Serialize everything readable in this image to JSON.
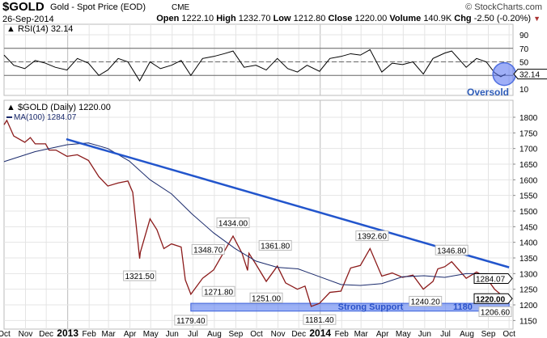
{
  "header": {
    "symbol": "$GOLD",
    "name": "Gold - Spot Price (EOD)",
    "exchange": "CME",
    "credit": "© StockCharts.com",
    "date": "26-Sep-2014",
    "open_label": "Open",
    "open": "1222.10",
    "high_label": "High",
    "high": "1232.70",
    "low_label": "Low",
    "low": "1212.80",
    "close_label": "Close",
    "close": "1220.00",
    "volume_label": "Volume",
    "volume": "140.9K",
    "chg_label": "Chg",
    "chg": "-2.50 (-0.20%)",
    "chg_icon": "triangle-down-icon"
  },
  "chart_data": [
    {
      "type": "line",
      "panel": "rsi",
      "legend": "RSI(14) 32.14",
      "current_value_label": "32.14",
      "ylim": [
        0,
        100
      ],
      "yticks": [
        10,
        50,
        70,
        90
      ],
      "reference_lines": [
        30,
        50,
        70
      ],
      "annotation": {
        "text": "Oversold",
        "date": "2014-09-24",
        "value": 32
      },
      "color": "#000000",
      "x": [
        "2012-10-01",
        "2012-10-15",
        "2012-10-31",
        "2012-11-15",
        "2012-11-30",
        "2012-12-14",
        "2012-12-31",
        "2013-01-15",
        "2013-01-31",
        "2013-02-15",
        "2013-02-28",
        "2013-03-15",
        "2013-03-29",
        "2013-04-15",
        "2013-04-30",
        "2013-05-15",
        "2013-05-31",
        "2013-06-14",
        "2013-06-28",
        "2013-07-15",
        "2013-07-31",
        "2013-08-15",
        "2013-08-28",
        "2013-09-13",
        "2013-09-30",
        "2013-10-15",
        "2013-10-31",
        "2013-11-15",
        "2013-11-29",
        "2013-12-13",
        "2013-12-31",
        "2014-01-15",
        "2014-01-31",
        "2014-02-14",
        "2014-02-28",
        "2014-03-14",
        "2014-03-31",
        "2014-04-15",
        "2014-04-30",
        "2014-05-15",
        "2014-05-30",
        "2014-06-13",
        "2014-06-30",
        "2014-07-10",
        "2014-07-31",
        "2014-08-15",
        "2014-08-29",
        "2014-09-10",
        "2014-09-19",
        "2014-09-26"
      ],
      "values": [
        60,
        45,
        40,
        52,
        48,
        42,
        38,
        55,
        48,
        30,
        38,
        55,
        50,
        22,
        50,
        40,
        45,
        52,
        30,
        55,
        58,
        62,
        66,
        42,
        45,
        38,
        55,
        40,
        35,
        45,
        36,
        55,
        58,
        62,
        60,
        68,
        35,
        48,
        46,
        50,
        32,
        55,
        63,
        66,
        42,
        55,
        50,
        34,
        28,
        32
      ]
    },
    {
      "type": "line",
      "panel": "price",
      "legend": "$GOLD (Daily) 1220.00",
      "ylim": [
        1150,
        1800
      ],
      "yticks": [
        1150,
        1200,
        1250,
        1300,
        1350,
        1400,
        1450,
        1500,
        1550,
        1600,
        1650,
        1700,
        1750,
        1800
      ],
      "xticks": [
        {
          "date": "2012-10-01",
          "label": "Oct"
        },
        {
          "date": "2012-11-01",
          "label": "Nov"
        },
        {
          "date": "2012-12-01",
          "label": "Dec"
        },
        {
          "date": "2013-01-01",
          "label": "2013",
          "bold": true
        },
        {
          "date": "2013-02-01",
          "label": "Feb"
        },
        {
          "date": "2013-03-01",
          "label": "Mar"
        },
        {
          "date": "2013-04-01",
          "label": "Apr"
        },
        {
          "date": "2013-05-01",
          "label": "May"
        },
        {
          "date": "2013-06-01",
          "label": "Jun"
        },
        {
          "date": "2013-07-01",
          "label": "Jul"
        },
        {
          "date": "2013-08-01",
          "label": "Aug"
        },
        {
          "date": "2013-09-01",
          "label": "Sep"
        },
        {
          "date": "2013-10-01",
          "label": "Oct"
        },
        {
          "date": "2013-11-01",
          "label": "Nov"
        },
        {
          "date": "2013-12-01",
          "label": "Dec"
        },
        {
          "date": "2014-01-01",
          "label": "2014",
          "bold": true
        },
        {
          "date": "2014-02-01",
          "label": "Feb"
        },
        {
          "date": "2014-03-01",
          "label": "Mar"
        },
        {
          "date": "2014-04-01",
          "label": "Apr"
        },
        {
          "date": "2014-05-01",
          "label": "May"
        },
        {
          "date": "2014-06-01",
          "label": "Jun"
        },
        {
          "date": "2014-07-01",
          "label": "Jul"
        },
        {
          "date": "2014-08-01",
          "label": "Aug"
        },
        {
          "date": "2014-09-01",
          "label": "Sep"
        },
        {
          "date": "2014-10-01",
          "label": "Oct"
        }
      ],
      "series": [
        {
          "name": "$GOLD (Daily)",
          "color": "#8b1a1a",
          "x": [
            "2012-10-01",
            "2012-10-05",
            "2012-10-15",
            "2012-10-31",
            "2012-11-08",
            "2012-11-15",
            "2012-11-30",
            "2012-12-05",
            "2012-12-15",
            "2012-12-31",
            "2013-01-15",
            "2013-01-31",
            "2013-02-15",
            "2013-02-28",
            "2013-03-15",
            "2013-03-29",
            "2013-04-05",
            "2013-04-15",
            "2013-04-16",
            "2013-04-30",
            "2013-05-10",
            "2013-05-20",
            "2013-05-31",
            "2013-06-14",
            "2013-06-20",
            "2013-06-28",
            "2013-07-15",
            "2013-07-31",
            "2013-08-15",
            "2013-08-28",
            "2013-09-10",
            "2013-09-18",
            "2013-09-20",
            "2013-09-30",
            "2013-10-15",
            "2013-10-31",
            "2013-11-12",
            "2013-11-29",
            "2013-12-10",
            "2013-12-19",
            "2013-12-31",
            "2014-01-15",
            "2014-01-31",
            "2014-02-14",
            "2014-02-28",
            "2014-03-14",
            "2014-03-31",
            "2014-04-15",
            "2014-04-30",
            "2014-05-15",
            "2014-05-30",
            "2014-06-13",
            "2014-06-20",
            "2014-06-30",
            "2014-07-10",
            "2014-07-31",
            "2014-08-15",
            "2014-08-29",
            "2014-09-10",
            "2014-09-26"
          ],
          "values": [
            1776,
            1790,
            1740,
            1720,
            1735,
            1715,
            1715,
            1695,
            1695,
            1675,
            1680,
            1662,
            1610,
            1580,
            1590,
            1596,
            1560,
            1348,
            1368,
            1475,
            1440,
            1380,
            1395,
            1385,
            1280,
            1234,
            1285,
            1312,
            1370,
            1420,
            1365,
            1310,
            1365,
            1330,
            1275,
            1324,
            1270,
            1250,
            1260,
            1195,
            1205,
            1240,
            1244,
            1318,
            1326,
            1380,
            1292,
            1302,
            1288,
            1295,
            1250,
            1275,
            1315,
            1322,
            1338,
            1285,
            1305,
            1287,
            1250,
            1220
          ]
        },
        {
          "name": "MA(100)",
          "legend": "MA(100) 1284.07",
          "current_value_label": "1284.07",
          "color": "#1a2a6c",
          "x": [
            "2012-10-01",
            "2012-11-15",
            "2012-12-31",
            "2013-01-31",
            "2013-02-28",
            "2013-03-31",
            "2013-04-30",
            "2013-05-31",
            "2013-06-30",
            "2013-07-31",
            "2013-08-31",
            "2013-09-30",
            "2013-10-31",
            "2013-11-30",
            "2013-12-31",
            "2014-01-31",
            "2014-02-28",
            "2014-03-31",
            "2014-04-30",
            "2014-05-31",
            "2014-06-30",
            "2014-07-31",
            "2014-08-31",
            "2014-09-26"
          ],
          "values": [
            1658,
            1690,
            1712,
            1718,
            1700,
            1660,
            1600,
            1555,
            1490,
            1430,
            1380,
            1340,
            1320,
            1315,
            1290,
            1265,
            1262,
            1268,
            1290,
            1293,
            1288,
            1300,
            1300,
            1284
          ]
        }
      ],
      "current_price_label": "1220.00",
      "trendline": {
        "color": "#2255cc",
        "from": {
          "date": "2012-12-30",
          "value": 1730
        },
        "to": {
          "date": "2014-10-01",
          "value": 1320
        }
      },
      "support_zone": {
        "label": "Strong Support",
        "axis_label": "1180",
        "from_date": "2013-06-28",
        "to_date": "2014-10-01",
        "low": 1180,
        "high": 1205,
        "color": "#6d8ff5"
      },
      "annotations": [
        {
          "text": "1321.50",
          "date": "2013-04-15",
          "value": 1321.5,
          "pos": "below"
        },
        {
          "text": "1179.40",
          "date": "2013-06-28",
          "value": 1179.4,
          "pos": "below"
        },
        {
          "text": "1348.70",
          "date": "2013-07-23",
          "value": 1348.7,
          "pos": "above"
        },
        {
          "text": "1271.80",
          "date": "2013-08-07",
          "value": 1271.8,
          "pos": "below"
        },
        {
          "text": "1434.00",
          "date": "2013-08-28",
          "value": 1434.0,
          "pos": "above"
        },
        {
          "text": "1251.00",
          "date": "2013-10-15",
          "value": 1251.0,
          "pos": "below"
        },
        {
          "text": "1361.80",
          "date": "2013-10-28",
          "value": 1361.8,
          "pos": "above"
        },
        {
          "text": "1181.40",
          "date": "2013-12-31",
          "value": 1181.4,
          "pos": "below"
        },
        {
          "text": "1392.60",
          "date": "2014-03-17",
          "value": 1392.6,
          "pos": "above"
        },
        {
          "text": "1240.20",
          "date": "2014-06-02",
          "value": 1240.2,
          "pos": "below"
        },
        {
          "text": "1346.80",
          "date": "2014-07-10",
          "value": 1346.8,
          "pos": "above"
        },
        {
          "text": "1206.60",
          "date": "2014-09-26",
          "value": 1206.6,
          "pos": "below"
        }
      ]
    }
  ]
}
